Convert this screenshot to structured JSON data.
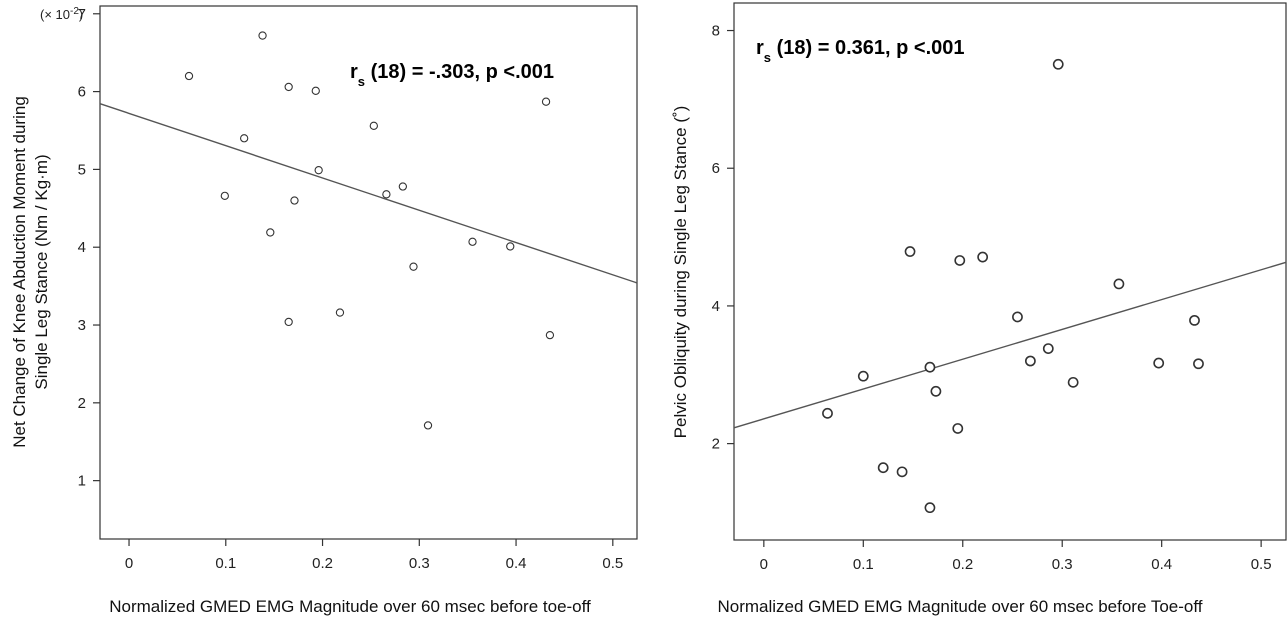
{
  "chart_data": [
    {
      "type": "scatter",
      "title": "",
      "annotation": {
        "prefix": "r",
        "subscript": "s",
        "text": " (18) = -.303, p <.001"
      },
      "scale_note": {
        "prefix": "(× 10",
        "exponent": "-2",
        "suffix": ")"
      },
      "xlabel": "Normalized GMED EMG Magnitude over 60 msec before toe-off",
      "ylabel_lines": [
        "Net Change of Knee Abduction Moment during",
        "Single Leg Stance (Nm / Kg·m)"
      ],
      "xlim": [
        -0.03,
        0.525
      ],
      "ylim": [
        0.25,
        7.1
      ],
      "x_ticks": [
        0,
        0.1,
        0.2,
        0.3,
        0.4,
        0.5
      ],
      "x_tick_labels": [
        "0",
        "0.1",
        "0.2",
        "0.3",
        "0.4",
        "0.5"
      ],
      "y_ticks": [
        1,
        2,
        3,
        4,
        5,
        6,
        7
      ],
      "y_tick_labels": [
        "1",
        "2",
        "3",
        "4",
        "5",
        "6",
        "7"
      ],
      "grid": false,
      "points": [
        {
          "x": 0.062,
          "y": 6.2
        },
        {
          "x": 0.099,
          "y": 4.66
        },
        {
          "x": 0.119,
          "y": 5.4
        },
        {
          "x": 0.138,
          "y": 6.72
        },
        {
          "x": 0.146,
          "y": 4.19
        },
        {
          "x": 0.165,
          "y": 6.06
        },
        {
          "x": 0.165,
          "y": 3.04
        },
        {
          "x": 0.171,
          "y": 4.6
        },
        {
          "x": 0.193,
          "y": 6.01
        },
        {
          "x": 0.196,
          "y": 4.99
        },
        {
          "x": 0.218,
          "y": 3.16
        },
        {
          "x": 0.253,
          "y": 5.56
        },
        {
          "x": 0.266,
          "y": 4.68
        },
        {
          "x": 0.283,
          "y": 4.78
        },
        {
          "x": 0.294,
          "y": 3.75
        },
        {
          "x": 0.309,
          "y": 1.71
        },
        {
          "x": 0.355,
          "y": 4.07
        },
        {
          "x": 0.394,
          "y": 4.01
        },
        {
          "x": 0.431,
          "y": 5.87
        },
        {
          "x": 0.435,
          "y": 2.87
        }
      ],
      "trend_line": {
        "intercept": 5.72,
        "slope": -4.15
      }
    },
    {
      "type": "scatter",
      "title": "",
      "annotation": {
        "prefix": "r",
        "subscript": "s",
        "text": " (18) = 0.361, p <.001"
      },
      "xlabel": "Normalized GMED EMG Magnitude over 60 msec before Toe-off",
      "ylabel_lines": [
        "Pelvic Obliquity during Single Leg Stance (˚)"
      ],
      "xlim": [
        -0.03,
        0.525
      ],
      "ylim": [
        0.6,
        8.4
      ],
      "x_ticks": [
        0,
        0.1,
        0.2,
        0.3,
        0.4,
        0.5
      ],
      "x_tick_labels": [
        "0",
        "0.1",
        "0.2",
        "0.3",
        "0.4",
        "0.5"
      ],
      "y_ticks": [
        2,
        4,
        6,
        8
      ],
      "y_tick_labels": [
        "2",
        "4",
        "6",
        "8"
      ],
      "grid": false,
      "points": [
        {
          "x": 0.064,
          "y": 2.44
        },
        {
          "x": 0.1,
          "y": 2.98
        },
        {
          "x": 0.12,
          "y": 1.65
        },
        {
          "x": 0.139,
          "y": 1.59
        },
        {
          "x": 0.147,
          "y": 4.79
        },
        {
          "x": 0.167,
          "y": 3.11
        },
        {
          "x": 0.167,
          "y": 1.07
        },
        {
          "x": 0.173,
          "y": 2.76
        },
        {
          "x": 0.195,
          "y": 2.22
        },
        {
          "x": 0.197,
          "y": 4.66
        },
        {
          "x": 0.22,
          "y": 4.71
        },
        {
          "x": 0.255,
          "y": 3.84
        },
        {
          "x": 0.268,
          "y": 3.2
        },
        {
          "x": 0.286,
          "y": 3.38
        },
        {
          "x": 0.296,
          "y": 7.51
        },
        {
          "x": 0.311,
          "y": 2.89
        },
        {
          "x": 0.357,
          "y": 4.32
        },
        {
          "x": 0.397,
          "y": 3.17
        },
        {
          "x": 0.433,
          "y": 3.79
        },
        {
          "x": 0.437,
          "y": 3.16
        }
      ],
      "trend_line": {
        "intercept": 2.36,
        "slope": 4.33
      }
    }
  ]
}
